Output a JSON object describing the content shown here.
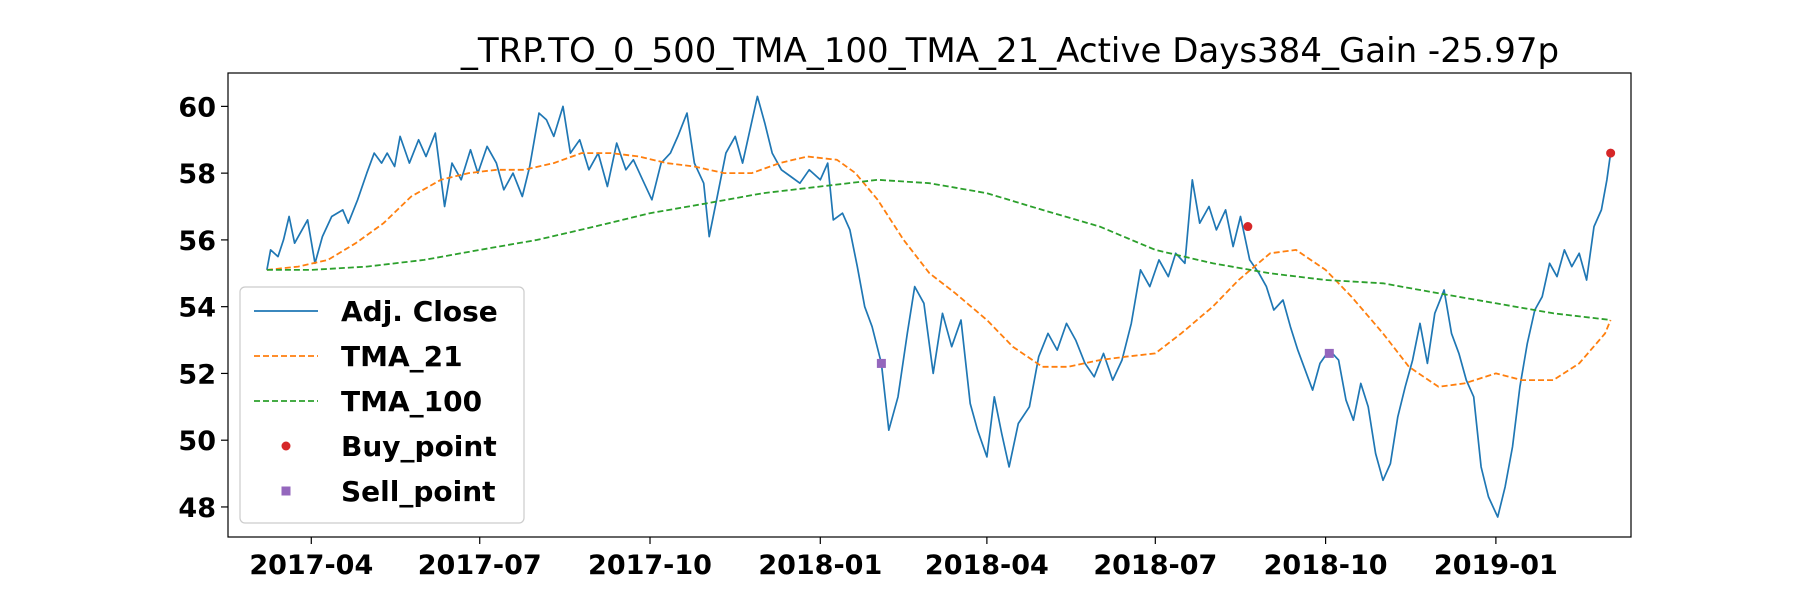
{
  "chart_data": {
    "type": "line",
    "title": "_TRP.TO_0_500_TMA_100_TMA_21_Active Days384_Gain -25.97p",
    "xlabel": "",
    "ylabel": "",
    "x_range": [
      "2017-02-15",
      "2019-03-15"
    ],
    "ylim": [
      47.1,
      61.0
    ],
    "grid": false,
    "legend_position": "lower-left",
    "x_ticks": [
      "2017-04-01",
      "2017-07-01",
      "2017-10-01",
      "2018-01-01",
      "2018-04-01",
      "2018-07-01",
      "2018-10-01",
      "2019-01-01"
    ],
    "x_tick_labels": [
      "2017-04",
      "2017-07",
      "2017-10",
      "2018-01",
      "2018-04",
      "2018-07",
      "2018-10",
      "2019-01"
    ],
    "y_ticks": [
      48,
      50,
      52,
      54,
      56,
      58,
      60
    ],
    "y_tick_labels": [
      "48",
      "50",
      "52",
      "54",
      "56",
      "58",
      "60"
    ],
    "series": [
      {
        "name": "Adj. Close",
        "style": "solid",
        "color": "#1f77b4",
        "points": [
          [
            "2017-03-08",
            55.1
          ],
          [
            "2017-03-10",
            55.7
          ],
          [
            "2017-03-14",
            55.5
          ],
          [
            "2017-03-17",
            56.0
          ],
          [
            "2017-03-20",
            56.7
          ],
          [
            "2017-03-23",
            55.9
          ],
          [
            "2017-03-27",
            56.3
          ],
          [
            "2017-03-30",
            56.6
          ],
          [
            "2017-04-03",
            55.3
          ],
          [
            "2017-04-07",
            56.1
          ],
          [
            "2017-04-12",
            56.7
          ],
          [
            "2017-04-18",
            56.9
          ],
          [
            "2017-04-21",
            56.5
          ],
          [
            "2017-04-26",
            57.2
          ],
          [
            "2017-05-01",
            58.0
          ],
          [
            "2017-05-05",
            58.6
          ],
          [
            "2017-05-09",
            58.3
          ],
          [
            "2017-05-12",
            58.6
          ],
          [
            "2017-05-16",
            58.2
          ],
          [
            "2017-05-19",
            59.1
          ],
          [
            "2017-05-24",
            58.3
          ],
          [
            "2017-05-29",
            59.0
          ],
          [
            "2017-06-02",
            58.5
          ],
          [
            "2017-06-07",
            59.2
          ],
          [
            "2017-06-12",
            57.0
          ],
          [
            "2017-06-16",
            58.3
          ],
          [
            "2017-06-21",
            57.8
          ],
          [
            "2017-06-26",
            58.7
          ],
          [
            "2017-06-30",
            58.0
          ],
          [
            "2017-07-05",
            58.8
          ],
          [
            "2017-07-10",
            58.3
          ],
          [
            "2017-07-14",
            57.5
          ],
          [
            "2017-07-19",
            58.0
          ],
          [
            "2017-07-24",
            57.3
          ],
          [
            "2017-07-28",
            58.2
          ],
          [
            "2017-08-02",
            59.8
          ],
          [
            "2017-08-06",
            59.6
          ],
          [
            "2017-08-10",
            59.1
          ],
          [
            "2017-08-15",
            60.0
          ],
          [
            "2017-08-19",
            58.6
          ],
          [
            "2017-08-24",
            59.0
          ],
          [
            "2017-08-29",
            58.1
          ],
          [
            "2017-09-03",
            58.6
          ],
          [
            "2017-09-08",
            57.6
          ],
          [
            "2017-09-13",
            58.9
          ],
          [
            "2017-09-18",
            58.1
          ],
          [
            "2017-09-22",
            58.4
          ],
          [
            "2017-09-27",
            57.8
          ],
          [
            "2017-10-02",
            57.2
          ],
          [
            "2017-10-07",
            58.3
          ],
          [
            "2017-10-12",
            58.6
          ],
          [
            "2017-10-16",
            59.1
          ],
          [
            "2017-10-21",
            59.8
          ],
          [
            "2017-10-25",
            58.3
          ],
          [
            "2017-10-30",
            57.7
          ],
          [
            "2017-11-02",
            56.1
          ],
          [
            "2017-11-06",
            57.2
          ],
          [
            "2017-11-11",
            58.6
          ],
          [
            "2017-11-16",
            59.1
          ],
          [
            "2017-11-20",
            58.3
          ],
          [
            "2017-11-24",
            59.3
          ],
          [
            "2017-11-28",
            60.3
          ],
          [
            "2017-12-02",
            59.5
          ],
          [
            "2017-12-06",
            58.6
          ],
          [
            "2017-12-11",
            58.1
          ],
          [
            "2017-12-16",
            57.9
          ],
          [
            "2017-12-21",
            57.7
          ],
          [
            "2017-12-26",
            58.1
          ],
          [
            "2018-01-01",
            57.8
          ],
          [
            "2018-01-05",
            58.3
          ],
          [
            "2018-01-08",
            56.6
          ],
          [
            "2018-01-13",
            56.8
          ],
          [
            "2018-01-17",
            56.3
          ],
          [
            "2018-01-21",
            55.2
          ],
          [
            "2018-01-25",
            54.0
          ],
          [
            "2018-01-29",
            53.4
          ],
          [
            "2018-02-03",
            52.3
          ],
          [
            "2018-02-07",
            50.3
          ],
          [
            "2018-02-12",
            51.3
          ],
          [
            "2018-02-17",
            53.2
          ],
          [
            "2018-02-21",
            54.6
          ],
          [
            "2018-02-26",
            54.1
          ],
          [
            "2018-03-03",
            52.0
          ],
          [
            "2018-03-08",
            53.8
          ],
          [
            "2018-03-13",
            52.8
          ],
          [
            "2018-03-18",
            53.6
          ],
          [
            "2018-03-23",
            51.1
          ],
          [
            "2018-03-27",
            50.3
          ],
          [
            "2018-04-01",
            49.5
          ],
          [
            "2018-04-05",
            51.3
          ],
          [
            "2018-04-09",
            50.2
          ],
          [
            "2018-04-13",
            49.2
          ],
          [
            "2018-04-18",
            50.5
          ],
          [
            "2018-04-24",
            51.0
          ],
          [
            "2018-04-29",
            52.5
          ],
          [
            "2018-05-04",
            53.2
          ],
          [
            "2018-05-09",
            52.7
          ],
          [
            "2018-05-14",
            53.5
          ],
          [
            "2018-05-19",
            53.0
          ],
          [
            "2018-05-24",
            52.3
          ],
          [
            "2018-05-29",
            51.9
          ],
          [
            "2018-06-03",
            52.6
          ],
          [
            "2018-06-08",
            51.8
          ],
          [
            "2018-06-13",
            52.4
          ],
          [
            "2018-06-18",
            53.5
          ],
          [
            "2018-06-23",
            55.1
          ],
          [
            "2018-06-28",
            54.6
          ],
          [
            "2018-07-03",
            55.4
          ],
          [
            "2018-07-08",
            54.9
          ],
          [
            "2018-07-12",
            55.6
          ],
          [
            "2018-07-17",
            55.3
          ],
          [
            "2018-07-21",
            57.8
          ],
          [
            "2018-07-25",
            56.5
          ],
          [
            "2018-07-30",
            57.0
          ],
          [
            "2018-08-03",
            56.3
          ],
          [
            "2018-08-08",
            56.9
          ],
          [
            "2018-08-12",
            55.8
          ],
          [
            "2018-08-16",
            56.7
          ],
          [
            "2018-08-21",
            55.4
          ],
          [
            "2018-08-26",
            55.0
          ],
          [
            "2018-08-30",
            54.6
          ],
          [
            "2018-09-03",
            53.9
          ],
          [
            "2018-09-08",
            54.2
          ],
          [
            "2018-09-12",
            53.4
          ],
          [
            "2018-09-16",
            52.7
          ],
          [
            "2018-09-20",
            52.1
          ],
          [
            "2018-09-24",
            51.5
          ],
          [
            "2018-09-28",
            52.3
          ],
          [
            "2018-10-03",
            52.7
          ],
          [
            "2018-10-08",
            52.4
          ],
          [
            "2018-10-12",
            51.2
          ],
          [
            "2018-10-16",
            50.6
          ],
          [
            "2018-10-20",
            51.7
          ],
          [
            "2018-10-24",
            51.0
          ],
          [
            "2018-10-28",
            49.6
          ],
          [
            "2018-11-01",
            48.8
          ],
          [
            "2018-11-05",
            49.3
          ],
          [
            "2018-11-09",
            50.7
          ],
          [
            "2018-11-13",
            51.6
          ],
          [
            "2018-11-17",
            52.4
          ],
          [
            "2018-11-21",
            53.5
          ],
          [
            "2018-11-25",
            52.3
          ],
          [
            "2018-11-29",
            53.8
          ],
          [
            "2018-12-04",
            54.5
          ],
          [
            "2018-12-08",
            53.2
          ],
          [
            "2018-12-12",
            52.6
          ],
          [
            "2018-12-16",
            51.8
          ],
          [
            "2018-12-20",
            51.3
          ],
          [
            "2018-12-24",
            49.2
          ],
          [
            "2018-12-28",
            48.3
          ],
          [
            "2019-01-02",
            47.7
          ],
          [
            "2019-01-06",
            48.6
          ],
          [
            "2019-01-10",
            49.8
          ],
          [
            "2019-01-14",
            51.6
          ],
          [
            "2019-01-18",
            52.9
          ],
          [
            "2019-01-22",
            53.9
          ],
          [
            "2019-01-26",
            54.3
          ],
          [
            "2019-01-30",
            55.3
          ],
          [
            "2019-02-03",
            54.9
          ],
          [
            "2019-02-07",
            55.7
          ],
          [
            "2019-02-11",
            55.2
          ],
          [
            "2019-02-15",
            55.6
          ],
          [
            "2019-02-19",
            54.8
          ],
          [
            "2019-02-23",
            56.4
          ],
          [
            "2019-02-27",
            56.9
          ],
          [
            "2019-03-02",
            57.8
          ],
          [
            "2019-03-04",
            58.6
          ]
        ]
      },
      {
        "name": "TMA_21",
        "style": "dashed",
        "color": "#ff7f0e",
        "points": [
          [
            "2017-03-08",
            55.1
          ],
          [
            "2017-03-25",
            55.2
          ],
          [
            "2017-04-10",
            55.4
          ],
          [
            "2017-04-25",
            55.9
          ],
          [
            "2017-05-10",
            56.5
          ],
          [
            "2017-05-25",
            57.3
          ],
          [
            "2017-06-10",
            57.8
          ],
          [
            "2017-06-25",
            58.0
          ],
          [
            "2017-07-10",
            58.1
          ],
          [
            "2017-07-25",
            58.1
          ],
          [
            "2017-08-10",
            58.3
          ],
          [
            "2017-08-25",
            58.6
          ],
          [
            "2017-09-10",
            58.6
          ],
          [
            "2017-09-25",
            58.5
          ],
          [
            "2017-10-10",
            58.3
          ],
          [
            "2017-10-25",
            58.2
          ],
          [
            "2017-11-10",
            58.0
          ],
          [
            "2017-11-25",
            58.0
          ],
          [
            "2017-12-10",
            58.3
          ],
          [
            "2017-12-25",
            58.5
          ],
          [
            "2018-01-10",
            58.4
          ],
          [
            "2018-01-20",
            58.0
          ],
          [
            "2018-02-01",
            57.2
          ],
          [
            "2018-02-15",
            56.0
          ],
          [
            "2018-03-01",
            55.0
          ],
          [
            "2018-03-15",
            54.4
          ],
          [
            "2018-04-01",
            53.6
          ],
          [
            "2018-04-15",
            52.8
          ],
          [
            "2018-05-01",
            52.2
          ],
          [
            "2018-05-15",
            52.2
          ],
          [
            "2018-06-01",
            52.4
          ],
          [
            "2018-06-15",
            52.5
          ],
          [
            "2018-07-01",
            52.6
          ],
          [
            "2018-07-15",
            53.2
          ],
          [
            "2018-08-01",
            54.0
          ],
          [
            "2018-08-15",
            54.8
          ],
          [
            "2018-09-01",
            55.6
          ],
          [
            "2018-09-15",
            55.7
          ],
          [
            "2018-10-01",
            55.1
          ],
          [
            "2018-10-15",
            54.3
          ],
          [
            "2018-11-01",
            53.2
          ],
          [
            "2018-11-15",
            52.2
          ],
          [
            "2018-12-01",
            51.6
          ],
          [
            "2018-12-15",
            51.7
          ],
          [
            "2019-01-01",
            52.0
          ],
          [
            "2019-01-15",
            51.8
          ],
          [
            "2019-02-01",
            51.8
          ],
          [
            "2019-02-15",
            52.3
          ],
          [
            "2019-03-01",
            53.2
          ],
          [
            "2019-03-04",
            53.6
          ]
        ]
      },
      {
        "name": "TMA_100",
        "style": "dashed",
        "color": "#2ca02c",
        "points": [
          [
            "2017-03-08",
            55.1
          ],
          [
            "2017-04-01",
            55.1
          ],
          [
            "2017-05-01",
            55.2
          ],
          [
            "2017-06-01",
            55.4
          ],
          [
            "2017-07-01",
            55.7
          ],
          [
            "2017-08-01",
            56.0
          ],
          [
            "2017-09-01",
            56.4
          ],
          [
            "2017-10-01",
            56.8
          ],
          [
            "2017-11-01",
            57.1
          ],
          [
            "2017-12-01",
            57.4
          ],
          [
            "2018-01-01",
            57.6
          ],
          [
            "2018-02-01",
            57.8
          ],
          [
            "2018-03-01",
            57.7
          ],
          [
            "2018-04-01",
            57.4
          ],
          [
            "2018-05-01",
            56.9
          ],
          [
            "2018-06-01",
            56.4
          ],
          [
            "2018-07-01",
            55.7
          ],
          [
            "2018-08-01",
            55.3
          ],
          [
            "2018-09-01",
            55.0
          ],
          [
            "2018-10-01",
            54.8
          ],
          [
            "2018-11-01",
            54.7
          ],
          [
            "2018-12-01",
            54.4
          ],
          [
            "2019-01-01",
            54.1
          ],
          [
            "2019-02-01",
            53.8
          ],
          [
            "2019-03-04",
            53.6
          ]
        ]
      },
      {
        "name": "Buy_point",
        "style": "marker-circle",
        "color": "#d62728",
        "points": [
          [
            "2018-08-20",
            56.4
          ],
          [
            "2019-03-04",
            58.6
          ]
        ]
      },
      {
        "name": "Sell_point",
        "style": "marker-square",
        "color": "#9467bd",
        "points": [
          [
            "2018-02-03",
            52.3
          ],
          [
            "2018-10-03",
            52.6
          ]
        ]
      }
    ]
  }
}
